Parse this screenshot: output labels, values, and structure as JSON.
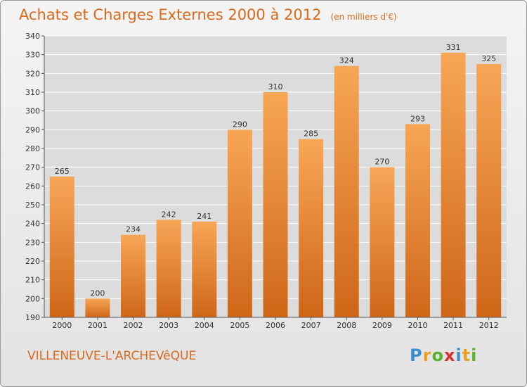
{
  "title": "Achats et Charges Externes 2000 à 2012",
  "unit_note": "(en milliers d'€)",
  "commune": "VILLENEUVE-L'ARCHEVêQUE",
  "logo": {
    "letters": [
      "P",
      "r",
      "o",
      "x",
      "i",
      "t",
      "i"
    ],
    "colors": [
      "#3b8fd0",
      "#e8a020",
      "#5cb030",
      "#d83030",
      "#3b8fd0",
      "#e8a020",
      "#5cb030"
    ]
  },
  "colors": {
    "bar_top": "#f7a656",
    "bar_bottom": "#cf6618",
    "grid": "#ffffff",
    "title": "#d96a1c"
  },
  "chart_data": {
    "type": "bar",
    "title": "Achats et Charges Externes 2000 à 2012",
    "categories": [
      "2000",
      "2001",
      "2002",
      "2003",
      "2004",
      "2005",
      "2006",
      "2007",
      "2008",
      "2009",
      "2010",
      "2011",
      "2012"
    ],
    "values": [
      265,
      200,
      234,
      242,
      241,
      290,
      310,
      285,
      324,
      270,
      293,
      331,
      325
    ],
    "ylim": [
      190,
      340
    ],
    "yticks": [
      190,
      200,
      210,
      220,
      230,
      240,
      250,
      260,
      270,
      280,
      290,
      300,
      310,
      320,
      330,
      340
    ],
    "grid": true,
    "xlabel": "",
    "ylabel": ""
  }
}
